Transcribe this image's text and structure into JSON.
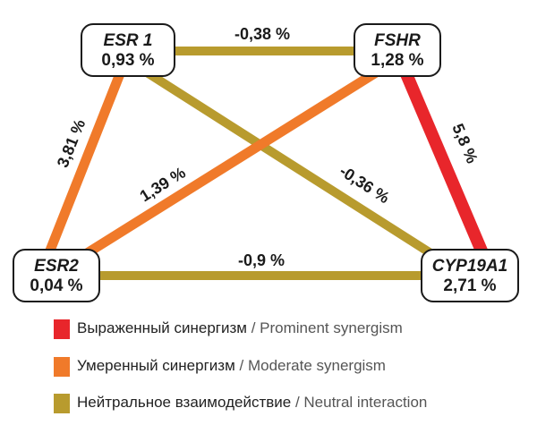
{
  "colors": {
    "prominent": "#e8262b",
    "moderate": "#f07a2a",
    "neutral": "#b89b2e",
    "box_border": "#1a1a1a",
    "text": "#1a1a1a"
  },
  "nodes": {
    "esr1": {
      "name": "ESR 1",
      "value": "0,93 %"
    },
    "fshr": {
      "name": "FSHR",
      "value": "1,28 %"
    },
    "esr2": {
      "name": "ESR2",
      "value": "0,04 %"
    },
    "cyp19a1": {
      "name": "CYP19A1",
      "value": "2,71 %"
    }
  },
  "edges": {
    "esr1_fshr": {
      "label": "-0,38 %",
      "type": "neutral"
    },
    "esr1_esr2": {
      "label": "3,81 %",
      "type": "moderate"
    },
    "fshr_cyp19a1": {
      "label": "5,8 %",
      "type": "prominent"
    },
    "fshr_esr2": {
      "label": "1,39 %",
      "type": "moderate"
    },
    "esr1_cyp19a1": {
      "label": "-0,36 %",
      "type": "neutral"
    },
    "esr2_cyp19a1": {
      "label": "-0,9 %",
      "type": "neutral"
    }
  },
  "legend": [
    {
      "type": "prominent",
      "ru": "Выраженный синергизм",
      "sep": " / ",
      "en": "Prominent synergism"
    },
    {
      "type": "moderate",
      "ru": "Умеренный синергизм",
      "sep": " / ",
      "en": "Moderate synergism"
    },
    {
      "type": "neutral",
      "ru": "Нейтральное взаимодействие",
      "sep": " / ",
      "en": "Neutral interaction"
    }
  ]
}
